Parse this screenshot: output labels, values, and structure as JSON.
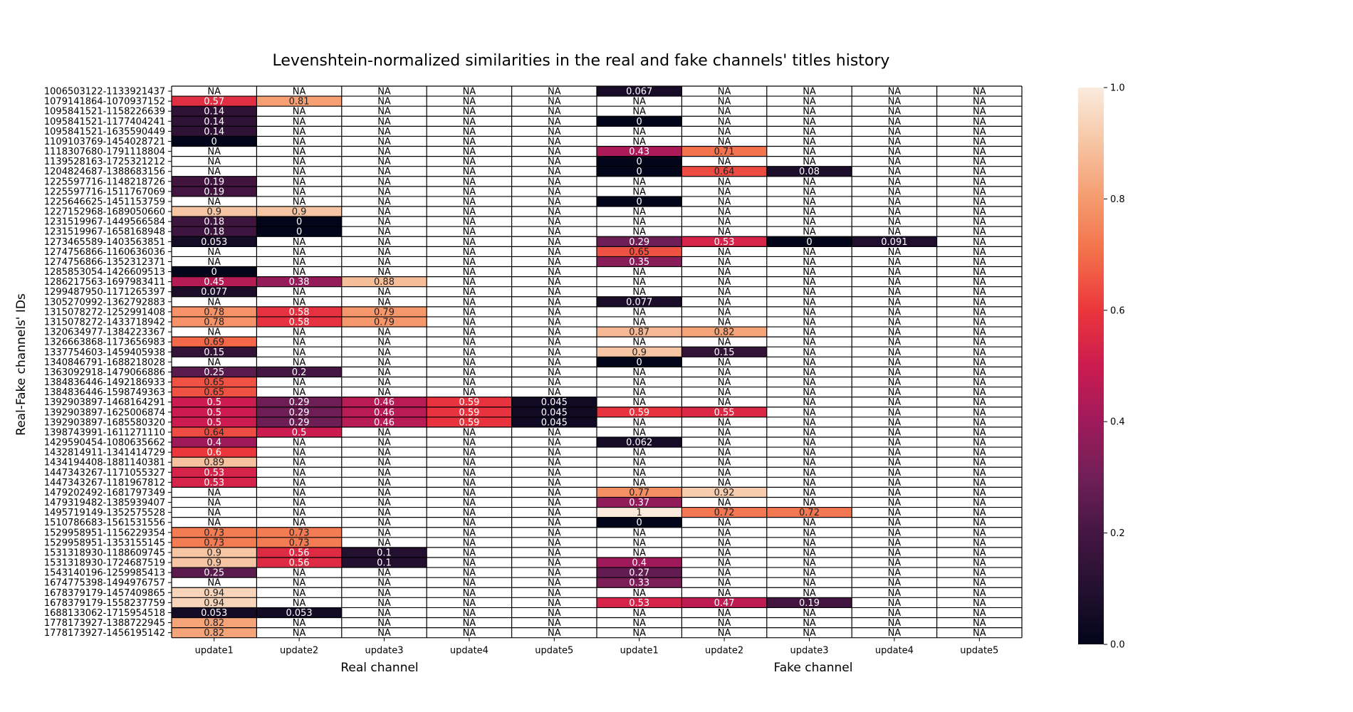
{
  "chart_data": {
    "type": "heatmap",
    "title": "Levenshtein-normalized similarities in the real and fake channels' titles history",
    "ylabel": "Real-Fake channels' IDs",
    "group_labels": [
      "Real channel",
      "Fake channel"
    ],
    "columns": [
      "update1",
      "update2",
      "update3",
      "update4",
      "update5",
      "update1",
      "update2",
      "update3",
      "update4",
      "update5"
    ],
    "column_groups": [
      0,
      0,
      0,
      0,
      0,
      1,
      1,
      1,
      1,
      1
    ],
    "missing_label": "NA",
    "colorbar": {
      "min": 0,
      "max": 1,
      "ticks": [
        "0.0",
        "0.2",
        "0.4",
        "0.6",
        "0.8",
        "1.0"
      ]
    },
    "colormap": "rocket",
    "rows": [
      {
        "id": "1006503122-1133921437",
        "values": [
          null,
          null,
          null,
          null,
          null,
          "0.067",
          null,
          null,
          null,
          null
        ]
      },
      {
        "id": "1079141864-1070937152",
        "values": [
          "0.57",
          "0.81",
          null,
          null,
          null,
          null,
          null,
          null,
          null,
          null
        ]
      },
      {
        "id": "1095841521-1158226639",
        "values": [
          "0.14",
          null,
          null,
          null,
          null,
          null,
          null,
          null,
          null,
          null
        ]
      },
      {
        "id": "1095841521-1177404241",
        "values": [
          "0.14",
          null,
          null,
          null,
          null,
          "0",
          null,
          null,
          null,
          null
        ]
      },
      {
        "id": "1095841521-1635590449",
        "values": [
          "0.14",
          null,
          null,
          null,
          null,
          null,
          null,
          null,
          null,
          null
        ]
      },
      {
        "id": "1109103769-1454028721",
        "values": [
          "0",
          null,
          null,
          null,
          null,
          null,
          null,
          null,
          null,
          null
        ]
      },
      {
        "id": "1118307680-1791118804",
        "values": [
          null,
          null,
          null,
          null,
          null,
          "0.43",
          "0.71",
          null,
          null,
          null
        ]
      },
      {
        "id": "1139528163-1725321212",
        "values": [
          null,
          null,
          null,
          null,
          null,
          "0",
          null,
          null,
          null,
          null
        ]
      },
      {
        "id": "1204824687-1388683156",
        "values": [
          null,
          null,
          null,
          null,
          null,
          "0",
          "0.64",
          "0.08",
          null,
          null
        ]
      },
      {
        "id": "1225597716-1148218726",
        "values": [
          "0.19",
          null,
          null,
          null,
          null,
          null,
          null,
          null,
          null,
          null
        ]
      },
      {
        "id": "1225597716-1511767069",
        "values": [
          "0.19",
          null,
          null,
          null,
          null,
          null,
          null,
          null,
          null,
          null
        ]
      },
      {
        "id": "1225646625-1451153759",
        "values": [
          null,
          null,
          null,
          null,
          null,
          "0",
          null,
          null,
          null,
          null
        ]
      },
      {
        "id": "1227152968-1689050660",
        "values": [
          "0.9",
          "0.9",
          null,
          null,
          null,
          null,
          null,
          null,
          null,
          null
        ]
      },
      {
        "id": "1231519967-1449566584",
        "values": [
          "0.18",
          "0",
          null,
          null,
          null,
          null,
          null,
          null,
          null,
          null
        ]
      },
      {
        "id": "1231519967-1658168948",
        "values": [
          "0.18",
          "0",
          null,
          null,
          null,
          null,
          null,
          null,
          null,
          null
        ]
      },
      {
        "id": "1273465589-1403563851",
        "values": [
          "0.053",
          null,
          null,
          null,
          null,
          "0.29",
          "0.53",
          "0",
          "0.091",
          null
        ]
      },
      {
        "id": "1274756866-1160636036",
        "values": [
          null,
          null,
          null,
          null,
          null,
          "0.65",
          null,
          null,
          null,
          null
        ]
      },
      {
        "id": "1274756866-1352312371",
        "values": [
          null,
          null,
          null,
          null,
          null,
          "0.35",
          null,
          null,
          null,
          null
        ]
      },
      {
        "id": "1285853054-1426609513",
        "values": [
          "0",
          null,
          null,
          null,
          null,
          null,
          null,
          null,
          null,
          null
        ]
      },
      {
        "id": "1286217563-1697983411",
        "values": [
          "0.45",
          "0.38",
          "0.88",
          null,
          null,
          null,
          null,
          null,
          null,
          null
        ]
      },
      {
        "id": "1299487950-1171265397",
        "values": [
          "0.077",
          null,
          null,
          null,
          null,
          null,
          null,
          null,
          null,
          null
        ]
      },
      {
        "id": "1305270992-1362792883",
        "values": [
          null,
          null,
          null,
          null,
          null,
          "0.077",
          null,
          null,
          null,
          null
        ]
      },
      {
        "id": "1315078272-1252991408",
        "values": [
          "0.78",
          "0.58",
          "0.79",
          null,
          null,
          null,
          null,
          null,
          null,
          null
        ]
      },
      {
        "id": "1315078272-1433718942",
        "values": [
          "0.78",
          "0.58",
          "0.79",
          null,
          null,
          null,
          null,
          null,
          null,
          null
        ]
      },
      {
        "id": "1320634977-1384223367",
        "values": [
          null,
          null,
          null,
          null,
          null,
          "0.87",
          "0.82",
          null,
          null,
          null
        ]
      },
      {
        "id": "1326663868-1173656983",
        "values": [
          "0.69",
          null,
          null,
          null,
          null,
          null,
          null,
          null,
          null,
          null
        ]
      },
      {
        "id": "1337754603-1459405938",
        "values": [
          "0.15",
          null,
          null,
          null,
          null,
          "0.9",
          "0.15",
          null,
          null,
          null
        ]
      },
      {
        "id": "1340846791-1688218028",
        "values": [
          null,
          null,
          null,
          null,
          null,
          "0",
          null,
          null,
          null,
          null
        ]
      },
      {
        "id": "1363092918-1479066886",
        "values": [
          "0.25",
          "0.2",
          null,
          null,
          null,
          null,
          null,
          null,
          null,
          null
        ]
      },
      {
        "id": "1384836446-1492186933",
        "values": [
          "0.65",
          null,
          null,
          null,
          null,
          null,
          null,
          null,
          null,
          null
        ]
      },
      {
        "id": "1384836446-1598749363",
        "values": [
          "0.65",
          null,
          null,
          null,
          null,
          null,
          null,
          null,
          null,
          null
        ]
      },
      {
        "id": "1392903897-1468164291",
        "values": [
          "0.5",
          "0.29",
          "0.46",
          "0.59",
          "0.045",
          null,
          null,
          null,
          null,
          null
        ]
      },
      {
        "id": "1392903897-1625006874",
        "values": [
          "0.5",
          "0.29",
          "0.46",
          "0.59",
          "0.045",
          "0.59",
          "0.55",
          null,
          null,
          null
        ]
      },
      {
        "id": "1392903897-1685580320",
        "values": [
          "0.5",
          "0.29",
          "0.46",
          "0.59",
          "0.045",
          null,
          null,
          null,
          null,
          null
        ]
      },
      {
        "id": "1398743991-1611271110",
        "values": [
          "0.64",
          "0.5",
          null,
          null,
          null,
          null,
          null,
          null,
          null,
          null
        ]
      },
      {
        "id": "1429590454-1080635662",
        "values": [
          "0.4",
          null,
          null,
          null,
          null,
          "0.062",
          null,
          null,
          null,
          null
        ]
      },
      {
        "id": "1432814911-1341414729",
        "values": [
          "0.6",
          null,
          null,
          null,
          null,
          null,
          null,
          null,
          null,
          null
        ]
      },
      {
        "id": "1434194408-1881140381",
        "values": [
          "0.89",
          null,
          null,
          null,
          null,
          null,
          null,
          null,
          null,
          null
        ]
      },
      {
        "id": "1447343267-1171055327",
        "values": [
          "0.53",
          null,
          null,
          null,
          null,
          null,
          null,
          null,
          null,
          null
        ]
      },
      {
        "id": "1447343267-1181967812",
        "values": [
          "0.53",
          null,
          null,
          null,
          null,
          null,
          null,
          null,
          null,
          null
        ]
      },
      {
        "id": "1479202492-1681797349",
        "values": [
          null,
          null,
          null,
          null,
          null,
          "0.77",
          "0.92",
          null,
          null,
          null
        ]
      },
      {
        "id": "1479319482-1385939407",
        "values": [
          null,
          null,
          null,
          null,
          null,
          "0.37",
          null,
          null,
          null,
          null
        ]
      },
      {
        "id": "1495719149-1352575528",
        "values": [
          null,
          null,
          null,
          null,
          null,
          "1",
          "0.72",
          "0.72",
          null,
          null
        ]
      },
      {
        "id": "1510786683-1561531556",
        "values": [
          null,
          null,
          null,
          null,
          null,
          "0",
          null,
          null,
          null,
          null
        ]
      },
      {
        "id": "1529958951-1156229354",
        "values": [
          "0.73",
          "0.73",
          null,
          null,
          null,
          null,
          null,
          null,
          null,
          null
        ]
      },
      {
        "id": "1529958951-1353155145",
        "values": [
          "0.73",
          "0.73",
          null,
          null,
          null,
          null,
          null,
          null,
          null,
          null
        ]
      },
      {
        "id": "1531318930-1188609745",
        "values": [
          "0.9",
          "0.56",
          "0.1",
          null,
          null,
          null,
          null,
          null,
          null,
          null
        ]
      },
      {
        "id": "1531318930-1724687519",
        "values": [
          "0.9",
          "0.56",
          "0.1",
          null,
          null,
          "0.4",
          null,
          null,
          null,
          null
        ]
      },
      {
        "id": "1543140196-1259985413",
        "values": [
          "0.25",
          null,
          null,
          null,
          null,
          "0.27",
          null,
          null,
          null,
          null
        ]
      },
      {
        "id": "1674775398-1494976757",
        "values": [
          null,
          null,
          null,
          null,
          null,
          "0.33",
          null,
          null,
          null,
          null
        ]
      },
      {
        "id": "1678379179-1457409865",
        "values": [
          "0.94",
          null,
          null,
          null,
          null,
          null,
          null,
          null,
          null,
          null
        ]
      },
      {
        "id": "1678379179-1558237759",
        "values": [
          "0.94",
          null,
          null,
          null,
          null,
          "0.53",
          "0.47",
          "0.19",
          null,
          null
        ]
      },
      {
        "id": "1688133062-1715954518",
        "values": [
          "0.053",
          "0.053",
          null,
          null,
          null,
          null,
          null,
          null,
          null,
          null
        ]
      },
      {
        "id": "1778173927-1388722945",
        "values": [
          "0.82",
          null,
          null,
          null,
          null,
          null,
          null,
          null,
          null,
          null
        ]
      },
      {
        "id": "1778173927-1456195142",
        "values": [
          "0.82",
          null,
          null,
          null,
          null,
          null,
          null,
          null,
          null,
          null
        ]
      }
    ]
  }
}
